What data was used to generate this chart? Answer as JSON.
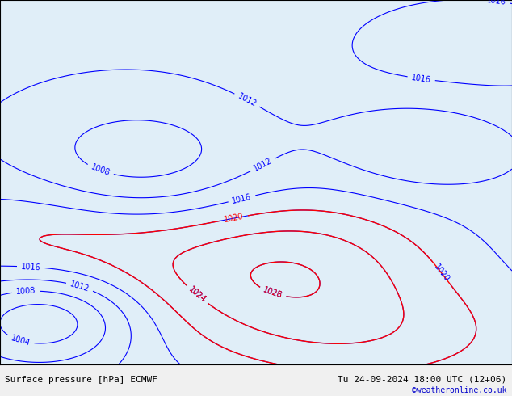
{
  "title_left": "Surface pressure [hPa] ECMWF",
  "title_right": "Tu 24-09-2024 18:00 UTC (12+06)",
  "credit": "©weatheronline.co.uk",
  "bg_color": "#f0f0f0",
  "land_color": "#a8d08d",
  "ocean_color": "#ffffff",
  "isobar_blue_color": "#0000ff",
  "isobar_red_color": "#ff0000",
  "isobar_black_color": "#000000",
  "label_fontsize": 7,
  "title_fontsize": 8,
  "credit_fontsize": 7,
  "credit_color": "#0000cc"
}
